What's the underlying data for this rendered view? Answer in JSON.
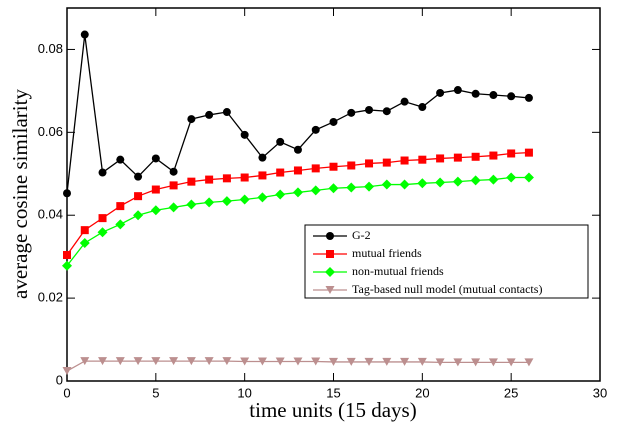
{
  "chart_data": {
    "type": "line",
    "x_label": "time units (15 days)",
    "y_label": "average cosine similarity",
    "x": [
      0,
      1,
      2,
      3,
      4,
      5,
      6,
      7,
      8,
      9,
      10,
      11,
      12,
      13,
      14,
      15,
      16,
      17,
      18,
      19,
      20,
      21,
      22,
      23,
      24,
      25,
      26
    ],
    "series": [
      {
        "name": "G-2",
        "color": "#000000",
        "marker": "circle",
        "values": [
          0.0453,
          0.0836,
          0.0503,
          0.0534,
          0.0493,
          0.0537,
          0.0505,
          0.0632,
          0.0642,
          0.0649,
          0.0594,
          0.0539,
          0.0577,
          0.0558,
          0.0606,
          0.0625,
          0.0647,
          0.0654,
          0.0651,
          0.0674,
          0.0661,
          0.0695,
          0.0702,
          0.0693,
          0.069,
          0.0687,
          0.0683
        ]
      },
      {
        "name": "mutual friends",
        "color": "#ff0000",
        "marker": "square",
        "values": [
          0.0304,
          0.0364,
          0.0393,
          0.0422,
          0.0446,
          0.0462,
          0.0472,
          0.0481,
          0.0486,
          0.0489,
          0.0491,
          0.0496,
          0.0503,
          0.0508,
          0.0513,
          0.0517,
          0.052,
          0.0525,
          0.0527,
          0.0532,
          0.0534,
          0.0537,
          0.0539,
          0.0541,
          0.0544,
          0.0549,
          0.0551
        ]
      },
      {
        "name": "non-mutual friends",
        "color": "#00ff00",
        "marker": "diamond",
        "values": [
          0.0278,
          0.0333,
          0.0359,
          0.0378,
          0.04,
          0.0412,
          0.0419,
          0.0426,
          0.0431,
          0.0434,
          0.0438,
          0.0443,
          0.045,
          0.0455,
          0.046,
          0.0465,
          0.0467,
          0.0469,
          0.0474,
          0.0474,
          0.0477,
          0.0479,
          0.0481,
          0.0484,
          0.0486,
          0.0491,
          0.0491
        ]
      },
      {
        "name": "Tag-based null model (mutual contacts)",
        "color": "#bc8f8f",
        "marker": "triangle-down",
        "values": [
          0.0024,
          0.0048,
          0.0048,
          0.0048,
          0.0048,
          0.0048,
          0.0048,
          0.0048,
          0.0048,
          0.0048,
          0.0047,
          0.0047,
          0.0047,
          0.0047,
          0.0047,
          0.0046,
          0.0046,
          0.0046,
          0.0046,
          0.0046,
          0.0046,
          0.0045,
          0.0045,
          0.0045,
          0.0045,
          0.0045,
          0.0045
        ]
      }
    ],
    "xlim": [
      0,
      30
    ],
    "xticks": [
      0,
      5,
      10,
      15,
      20,
      25,
      30
    ],
    "ylim": [
      0,
      0.09
    ],
    "yticks": [
      0,
      0.02,
      0.04,
      0.06,
      0.08
    ],
    "legend": "center-right",
    "grid": false
  }
}
